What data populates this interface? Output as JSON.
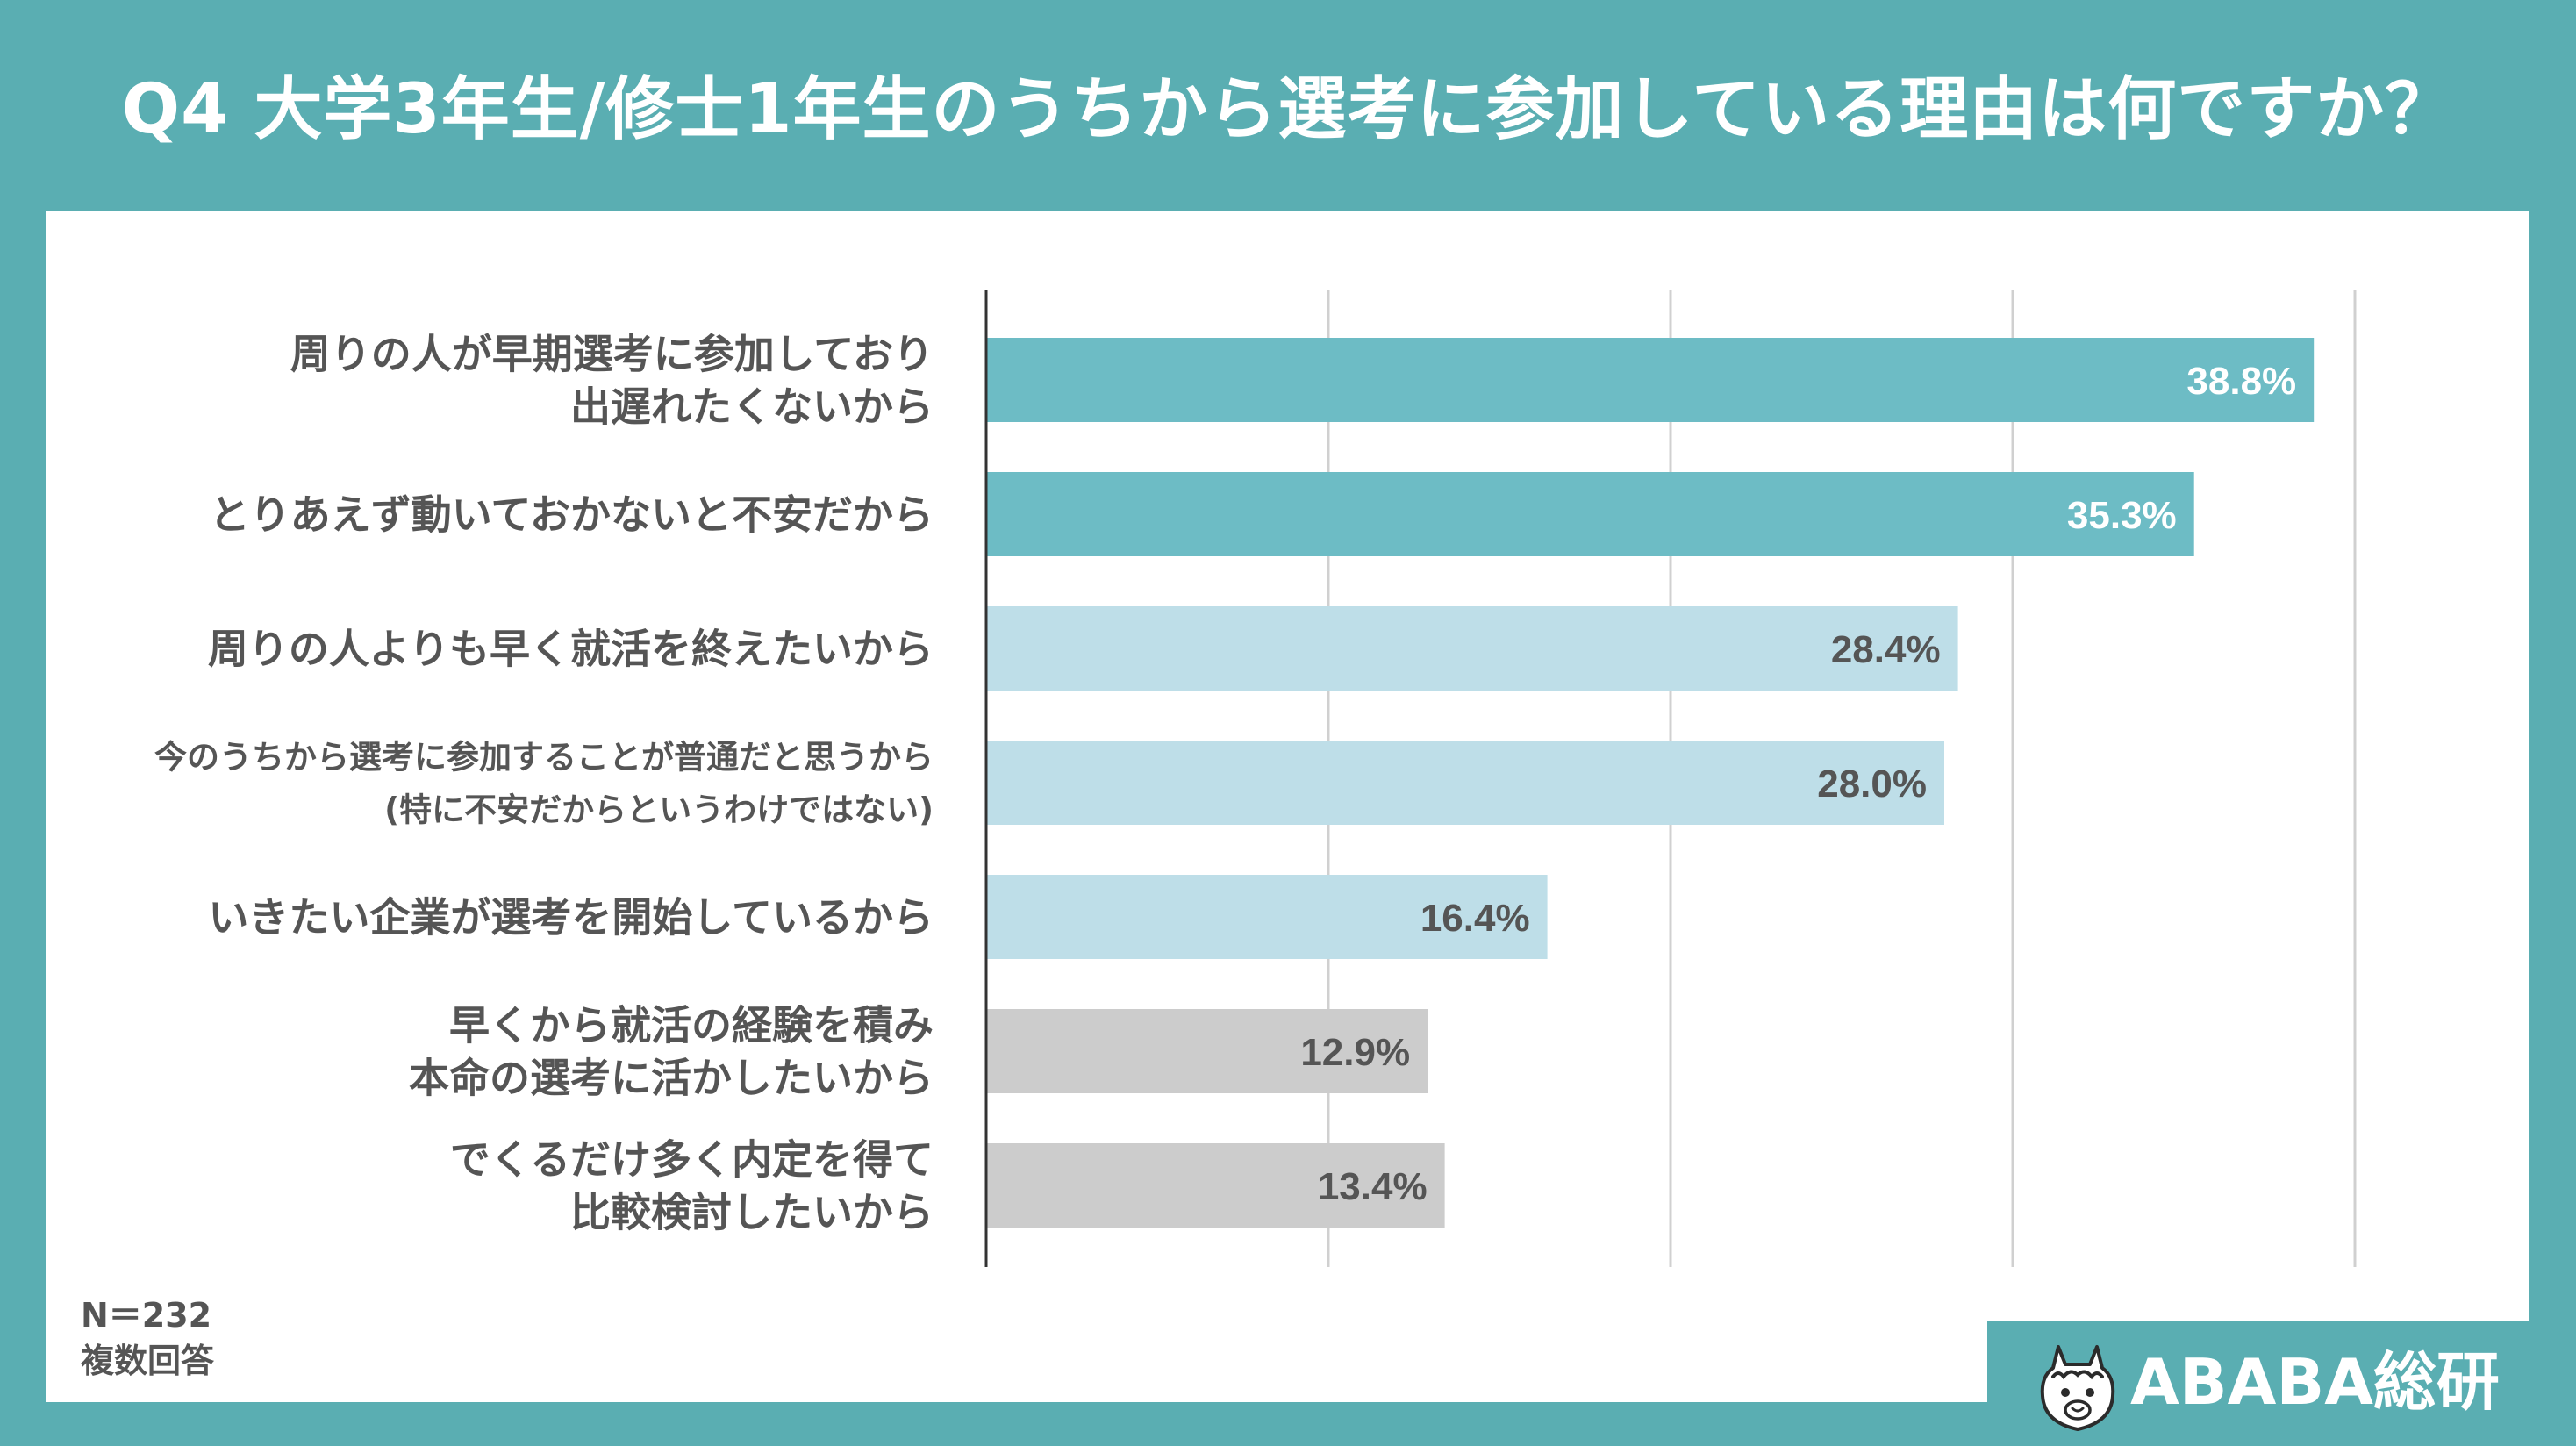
{
  "title": "Q4  大学3年生/修士1年生のうちから選考に参加している理由は何ですか？",
  "chart_data": {
    "type": "bar",
    "orientation": "horizontal",
    "title": "Q4  大学3年生/修士1年生のうちから選考に参加している理由は何ですか？",
    "xlim": [
      0,
      40
    ],
    "grid": true,
    "value_suffix": "%",
    "categories": [
      [
        "周りの人が早期選考に参加しており",
        "出遅れたくないから"
      ],
      [
        "とりあえず動いておかないと不安だから"
      ],
      [
        "周りの人よりも早く就活を終えたいから"
      ],
      [
        "今のうちから選考に参加することが普通だと思うから",
        "(特に不安だからというわけではない)"
      ],
      [
        "いきたい企業が選考を開始しているから"
      ],
      [
        "早くから就活の経験を積み",
        "本命の選考に活かしたいから"
      ],
      [
        "でくるだけ多く内定を得て",
        "比較検討したいから"
      ]
    ],
    "values": [
      38.8,
      35.3,
      28.4,
      28.0,
      16.4,
      12.9,
      13.4
    ],
    "bar_colors": [
      "#6dbcc5",
      "#6dbcc5",
      "#bedee8",
      "#bedee8",
      "#bedee8",
      "#cccccc",
      "#cccccc"
    ],
    "label_colors": [
      "#ffffff",
      "#ffffff",
      "#555555",
      "#555555",
      "#555555",
      "#555555",
      "#555555"
    ]
  },
  "footnote": {
    "n": "N＝232",
    "note": "複数回答"
  },
  "logo": {
    "text": "ABABA総研",
    "icon": "alpaca-icon"
  },
  "colors": {
    "background": "#5aaeb2",
    "panel": "#ffffff",
    "gridline": "#d0d0d0",
    "axis": "#333333",
    "category_text": "#555555"
  }
}
